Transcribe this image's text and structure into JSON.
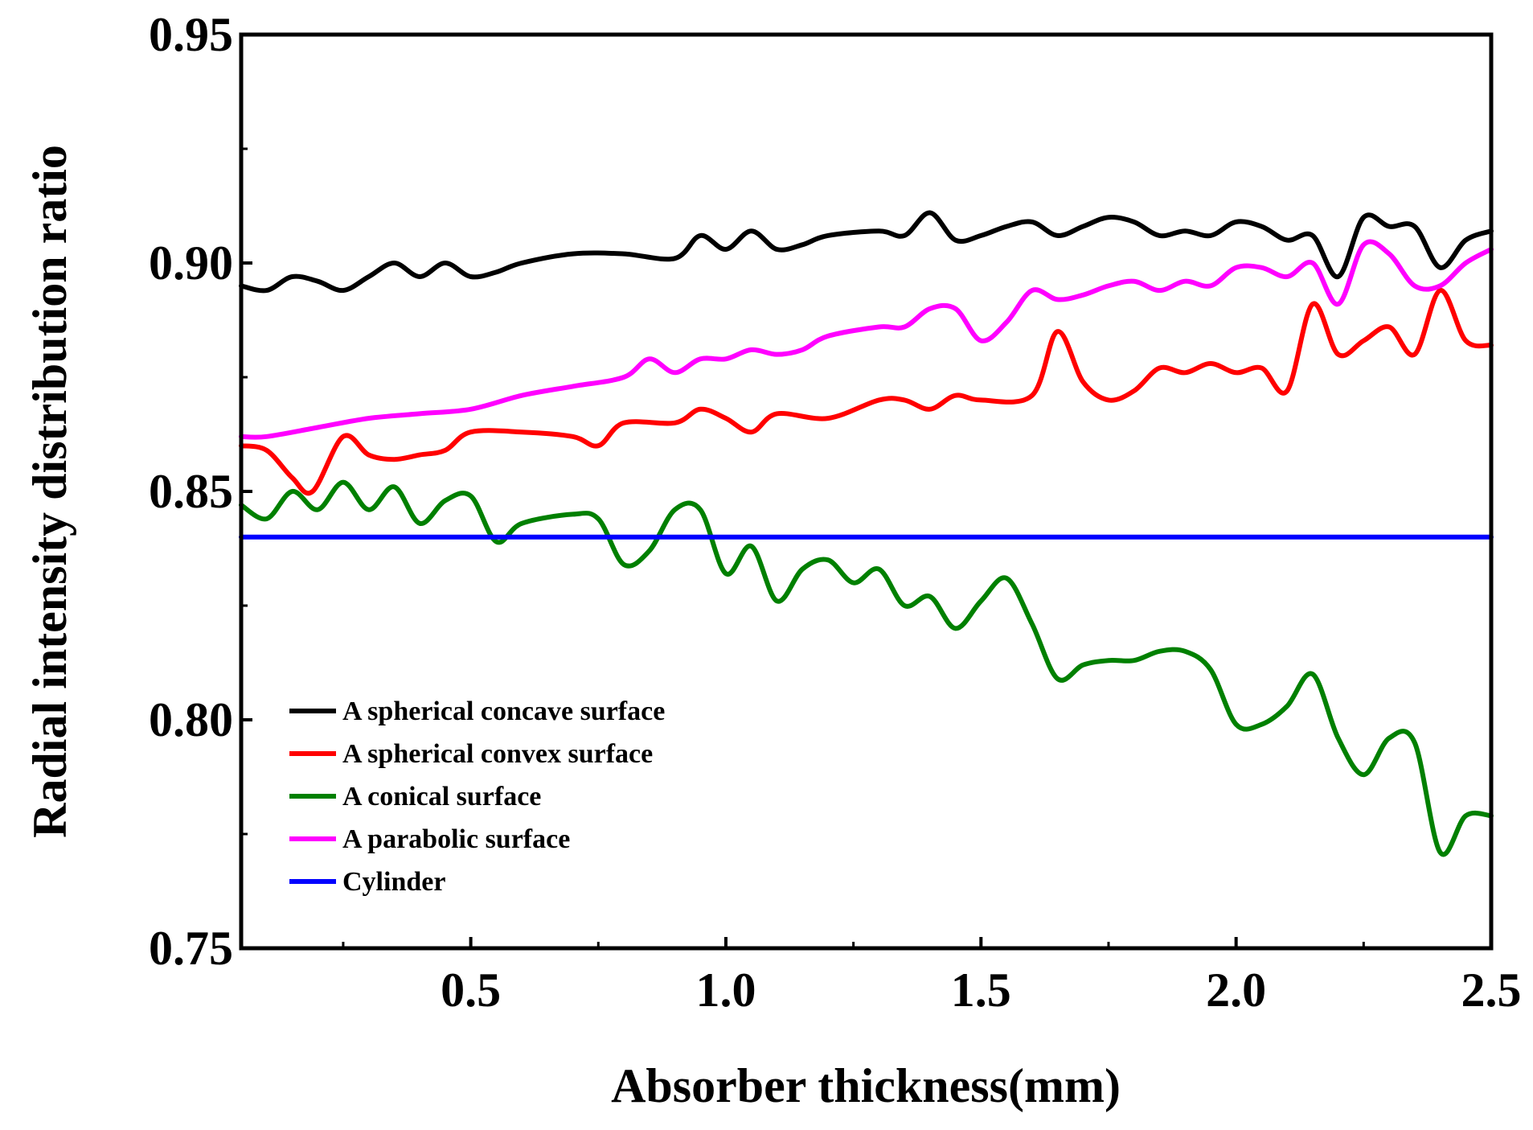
{
  "chart_data": {
    "type": "line",
    "title": "",
    "xlabel": "Absorber thickness(mm)",
    "ylabel": "Radial intensity distribution ratio",
    "xlim": [
      0.05,
      2.5
    ],
    "ylim": [
      0.75,
      0.95
    ],
    "xticks": [
      0.5,
      1.0,
      1.5,
      2.0,
      2.5
    ],
    "xtick_labels": [
      "0.5",
      "1.0",
      "1.5",
      "2.0",
      "2.5"
    ],
    "yticks": [
      0.75,
      0.8,
      0.85,
      0.9,
      0.95
    ],
    "ytick_labels": [
      "0.75",
      "0.80",
      "0.85",
      "0.90",
      "0.95"
    ],
    "legend_position": "lower-left",
    "series": [
      {
        "name": "A spherical concave surface",
        "color": "#000000",
        "x": [
          0.05,
          0.1,
          0.15,
          0.2,
          0.25,
          0.3,
          0.35,
          0.4,
          0.45,
          0.5,
          0.55,
          0.6,
          0.7,
          0.8,
          0.9,
          0.95,
          1.0,
          1.05,
          1.1,
          1.15,
          1.2,
          1.3,
          1.35,
          1.4,
          1.45,
          1.5,
          1.55,
          1.6,
          1.65,
          1.7,
          1.75,
          1.8,
          1.85,
          1.9,
          1.95,
          2.0,
          2.05,
          2.1,
          2.15,
          2.2,
          2.25,
          2.3,
          2.35,
          2.4,
          2.45,
          2.5
        ],
        "y": [
          0.895,
          0.894,
          0.897,
          0.896,
          0.894,
          0.897,
          0.9,
          0.897,
          0.9,
          0.897,
          0.898,
          0.9,
          0.902,
          0.902,
          0.901,
          0.906,
          0.903,
          0.907,
          0.903,
          0.904,
          0.906,
          0.907,
          0.906,
          0.911,
          0.905,
          0.906,
          0.908,
          0.909,
          0.906,
          0.908,
          0.91,
          0.909,
          0.906,
          0.907,
          0.906,
          0.909,
          0.908,
          0.905,
          0.906,
          0.897,
          0.91,
          0.908,
          0.908,
          0.899,
          0.905,
          0.907
        ]
      },
      {
        "name": "A spherical convex surface",
        "color": "#ff0000",
        "x": [
          0.05,
          0.1,
          0.15,
          0.19,
          0.25,
          0.3,
          0.35,
          0.4,
          0.45,
          0.5,
          0.6,
          0.7,
          0.75,
          0.8,
          0.9,
          0.95,
          1.0,
          1.05,
          1.1,
          1.2,
          1.3,
          1.35,
          1.4,
          1.45,
          1.5,
          1.6,
          1.65,
          1.7,
          1.75,
          1.8,
          1.85,
          1.9,
          1.95,
          2.0,
          2.05,
          2.1,
          2.15,
          2.2,
          2.25,
          2.3,
          2.35,
          2.4,
          2.45,
          2.5
        ],
        "y": [
          0.86,
          0.859,
          0.853,
          0.85,
          0.862,
          0.858,
          0.857,
          0.858,
          0.859,
          0.863,
          0.863,
          0.862,
          0.86,
          0.865,
          0.865,
          0.868,
          0.866,
          0.863,
          0.867,
          0.866,
          0.87,
          0.87,
          0.868,
          0.871,
          0.87,
          0.871,
          0.885,
          0.874,
          0.87,
          0.872,
          0.877,
          0.876,
          0.878,
          0.876,
          0.877,
          0.872,
          0.891,
          0.88,
          0.883,
          0.886,
          0.88,
          0.894,
          0.883,
          0.882
        ]
      },
      {
        "name": "A conical surface",
        "color": "#008000",
        "x": [
          0.05,
          0.1,
          0.15,
          0.2,
          0.25,
          0.3,
          0.35,
          0.4,
          0.45,
          0.5,
          0.55,
          0.6,
          0.7,
          0.75,
          0.8,
          0.85,
          0.9,
          0.95,
          1.0,
          1.05,
          1.1,
          1.15,
          1.2,
          1.25,
          1.3,
          1.35,
          1.4,
          1.45,
          1.5,
          1.55,
          1.6,
          1.65,
          1.7,
          1.75,
          1.8,
          1.85,
          1.9,
          1.95,
          2.0,
          2.05,
          2.1,
          2.15,
          2.2,
          2.25,
          2.3,
          2.35,
          2.4,
          2.45,
          2.5
        ],
        "y": [
          0.847,
          0.844,
          0.85,
          0.846,
          0.852,
          0.846,
          0.851,
          0.843,
          0.848,
          0.849,
          0.839,
          0.843,
          0.845,
          0.844,
          0.834,
          0.837,
          0.846,
          0.846,
          0.832,
          0.838,
          0.826,
          0.833,
          0.835,
          0.83,
          0.833,
          0.825,
          0.827,
          0.82,
          0.826,
          0.831,
          0.821,
          0.809,
          0.812,
          0.813,
          0.813,
          0.815,
          0.815,
          0.811,
          0.799,
          0.799,
          0.803,
          0.81,
          0.796,
          0.788,
          0.796,
          0.795,
          0.771,
          0.779,
          0.779
        ]
      },
      {
        "name": "A parabolic surface",
        "color": "#ff00ff",
        "x": [
          0.05,
          0.1,
          0.2,
          0.3,
          0.4,
          0.5,
          0.6,
          0.7,
          0.8,
          0.85,
          0.9,
          0.95,
          1.0,
          1.05,
          1.1,
          1.15,
          1.2,
          1.3,
          1.35,
          1.4,
          1.45,
          1.5,
          1.55,
          1.6,
          1.65,
          1.7,
          1.75,
          1.8,
          1.85,
          1.9,
          1.95,
          2.0,
          2.05,
          2.1,
          2.15,
          2.2,
          2.25,
          2.3,
          2.35,
          2.4,
          2.45,
          2.5
        ],
        "y": [
          0.862,
          0.862,
          0.864,
          0.866,
          0.867,
          0.868,
          0.871,
          0.873,
          0.875,
          0.879,
          0.876,
          0.879,
          0.879,
          0.881,
          0.88,
          0.881,
          0.884,
          0.886,
          0.886,
          0.89,
          0.89,
          0.883,
          0.887,
          0.894,
          0.892,
          0.893,
          0.895,
          0.896,
          0.894,
          0.896,
          0.895,
          0.899,
          0.899,
          0.897,
          0.9,
          0.891,
          0.904,
          0.902,
          0.895,
          0.895,
          0.9,
          0.903
        ]
      },
      {
        "name": "Cylinder",
        "color": "#0000ff",
        "x": [
          0.05,
          2.5
        ],
        "y": [
          0.84,
          0.84
        ]
      }
    ]
  }
}
